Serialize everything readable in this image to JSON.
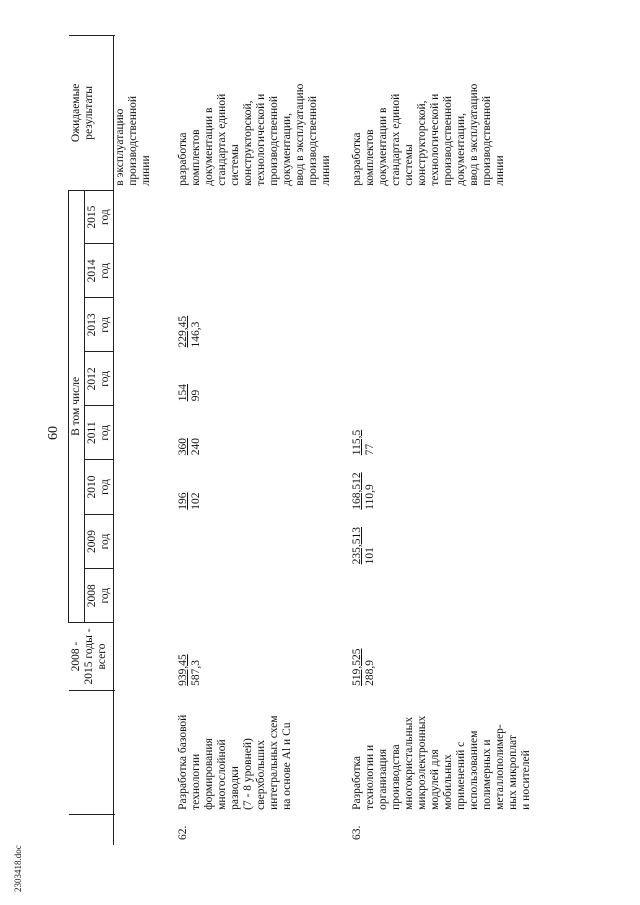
{
  "page_number": "60",
  "footer_file": "2303418.doc",
  "header": {
    "total_label_lines": [
      "2008 -",
      "2015 годы -",
      "всего"
    ],
    "in_that_number": "В том числе",
    "years": [
      {
        "year": "2008",
        "unit": "год"
      },
      {
        "year": "2009",
        "unit": "год"
      },
      {
        "year": "2010",
        "unit": "год"
      },
      {
        "year": "2011",
        "unit": "год"
      },
      {
        "year": "2012",
        "unit": "год"
      },
      {
        "year": "2013",
        "unit": "год"
      },
      {
        "year": "2014",
        "unit": "год"
      },
      {
        "year": "2015",
        "unit": "год"
      }
    ],
    "results_label_lines": [
      "Ожидаемые",
      "результаты"
    ]
  },
  "continuation_result_lines": [
    "в эксплуатацию",
    "производственной",
    "линии"
  ],
  "rows": [
    {
      "num": "62.",
      "name_lines": [
        "Разработка базовой",
        "технологии",
        "формирования",
        "многослойной",
        "разводки",
        "(7 - 8 уровней)",
        "сверхбольших",
        "интегральных схем",
        "на основе Al и Cu"
      ],
      "total": {
        "top": "939,45",
        "bottom": "587,3"
      },
      "years": [
        {
          "top": "",
          "bottom": ""
        },
        {
          "top": "",
          "bottom": ""
        },
        {
          "top": "196",
          "bottom": "102"
        },
        {
          "top": "360",
          "bottom": "240"
        },
        {
          "top": "154",
          "bottom": "99"
        },
        {
          "top": "229,45",
          "bottom": "146,3"
        },
        {
          "top": "",
          "bottom": ""
        },
        {
          "top": "",
          "bottom": ""
        }
      ],
      "result_lines": [
        "разработка",
        "комплектов",
        "документации в",
        "стандартах единой",
        "системы",
        "конструкторской,",
        "технологической и",
        "производственной",
        "документации,",
        "ввод в эксплуатацию",
        "производственной",
        "линии"
      ]
    },
    {
      "num": "63.",
      "name_lines": [
        "Разработка",
        "технологии и",
        "организация",
        "производства",
        "многокристальных",
        "микроэлектронных",
        "модулей для",
        "мобильных",
        "применений с",
        "использованием",
        "полимерных и",
        "металлополимер-",
        "ных микроплат",
        "и носителей"
      ],
      "total": {
        "top": "519,525",
        "bottom": "288,9"
      },
      "years": [
        {
          "top": "",
          "bottom": ""
        },
        {
          "top": "235,513",
          "bottom": "101"
        },
        {
          "top": "168,512",
          "bottom": "110,9"
        },
        {
          "top": "115,5",
          "bottom": "77"
        },
        {
          "top": "",
          "bottom": ""
        },
        {
          "top": "",
          "bottom": ""
        },
        {
          "top": "",
          "bottom": ""
        },
        {
          "top": "",
          "bottom": ""
        }
      ],
      "result_lines": [
        "разработка",
        "комплектов",
        "документации в",
        "стандартах единой",
        "системы",
        "конструкторской,",
        "технологической и",
        "производственной",
        "документации,",
        "ввод в эксплуатацию",
        "производственной",
        "линии"
      ]
    }
  ]
}
